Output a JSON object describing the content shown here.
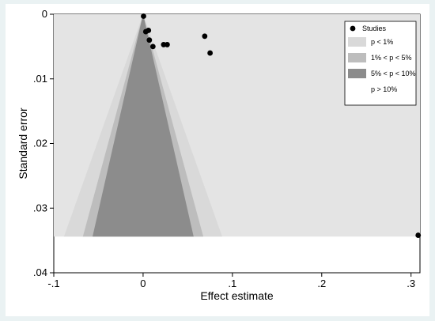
{
  "chart_data": {
    "type": "scatter",
    "title": "",
    "xlabel": "Effect estimate",
    "ylabel": "Standard error",
    "xlim": [
      -0.1,
      0.31
    ],
    "ylim": [
      0,
      0.04
    ],
    "y_reversed": true,
    "grid": false,
    "legend_position": "top-right",
    "x_ticks": [
      {
        "value": -0.1,
        "label": "-.1"
      },
      {
        "value": 0,
        "label": "0"
      },
      {
        "value": 0.1,
        "label": ".1"
      },
      {
        "value": 0.2,
        "label": ".2"
      },
      {
        "value": 0.3,
        "label": ".3"
      }
    ],
    "y_ticks": [
      {
        "value": 0,
        "label": "0"
      },
      {
        "value": 0.01,
        "label": ".01"
      },
      {
        "value": 0.02,
        "label": ".02"
      },
      {
        "value": 0.03,
        "label": ".03"
      },
      {
        "value": 0.04,
        "label": ".04"
      }
    ],
    "contour_max_se": 0.0344,
    "contours": [
      {
        "label": "p < 1%",
        "z": 2.576,
        "color": "#d9d9d9"
      },
      {
        "label": "1% < p < 5%",
        "z": 1.96,
        "color": "#bdbdbd"
      },
      {
        "label": "5% < p < 10%",
        "z": 1.645,
        "color": "#8c8c8c"
      },
      {
        "label": "p > 10%",
        "z": 0,
        "color": "#ffffff"
      }
    ],
    "region_background_color": "#e4e4e4",
    "series": [
      {
        "name": "Studies",
        "color": "#000000",
        "points": [
          {
            "x": 0.0005,
            "y": 0.0003
          },
          {
            "x": 0.003,
            "y": 0.0027
          },
          {
            "x": 0.006,
            "y": 0.0025
          },
          {
            "x": 0.007,
            "y": 0.004
          },
          {
            "x": 0.011,
            "y": 0.005
          },
          {
            "x": 0.023,
            "y": 0.0047
          },
          {
            "x": 0.027,
            "y": 0.0047
          },
          {
            "x": 0.069,
            "y": 0.0034
          },
          {
            "x": 0.075,
            "y": 0.006
          },
          {
            "x": 0.308,
            "y": 0.0342
          }
        ]
      }
    ]
  }
}
